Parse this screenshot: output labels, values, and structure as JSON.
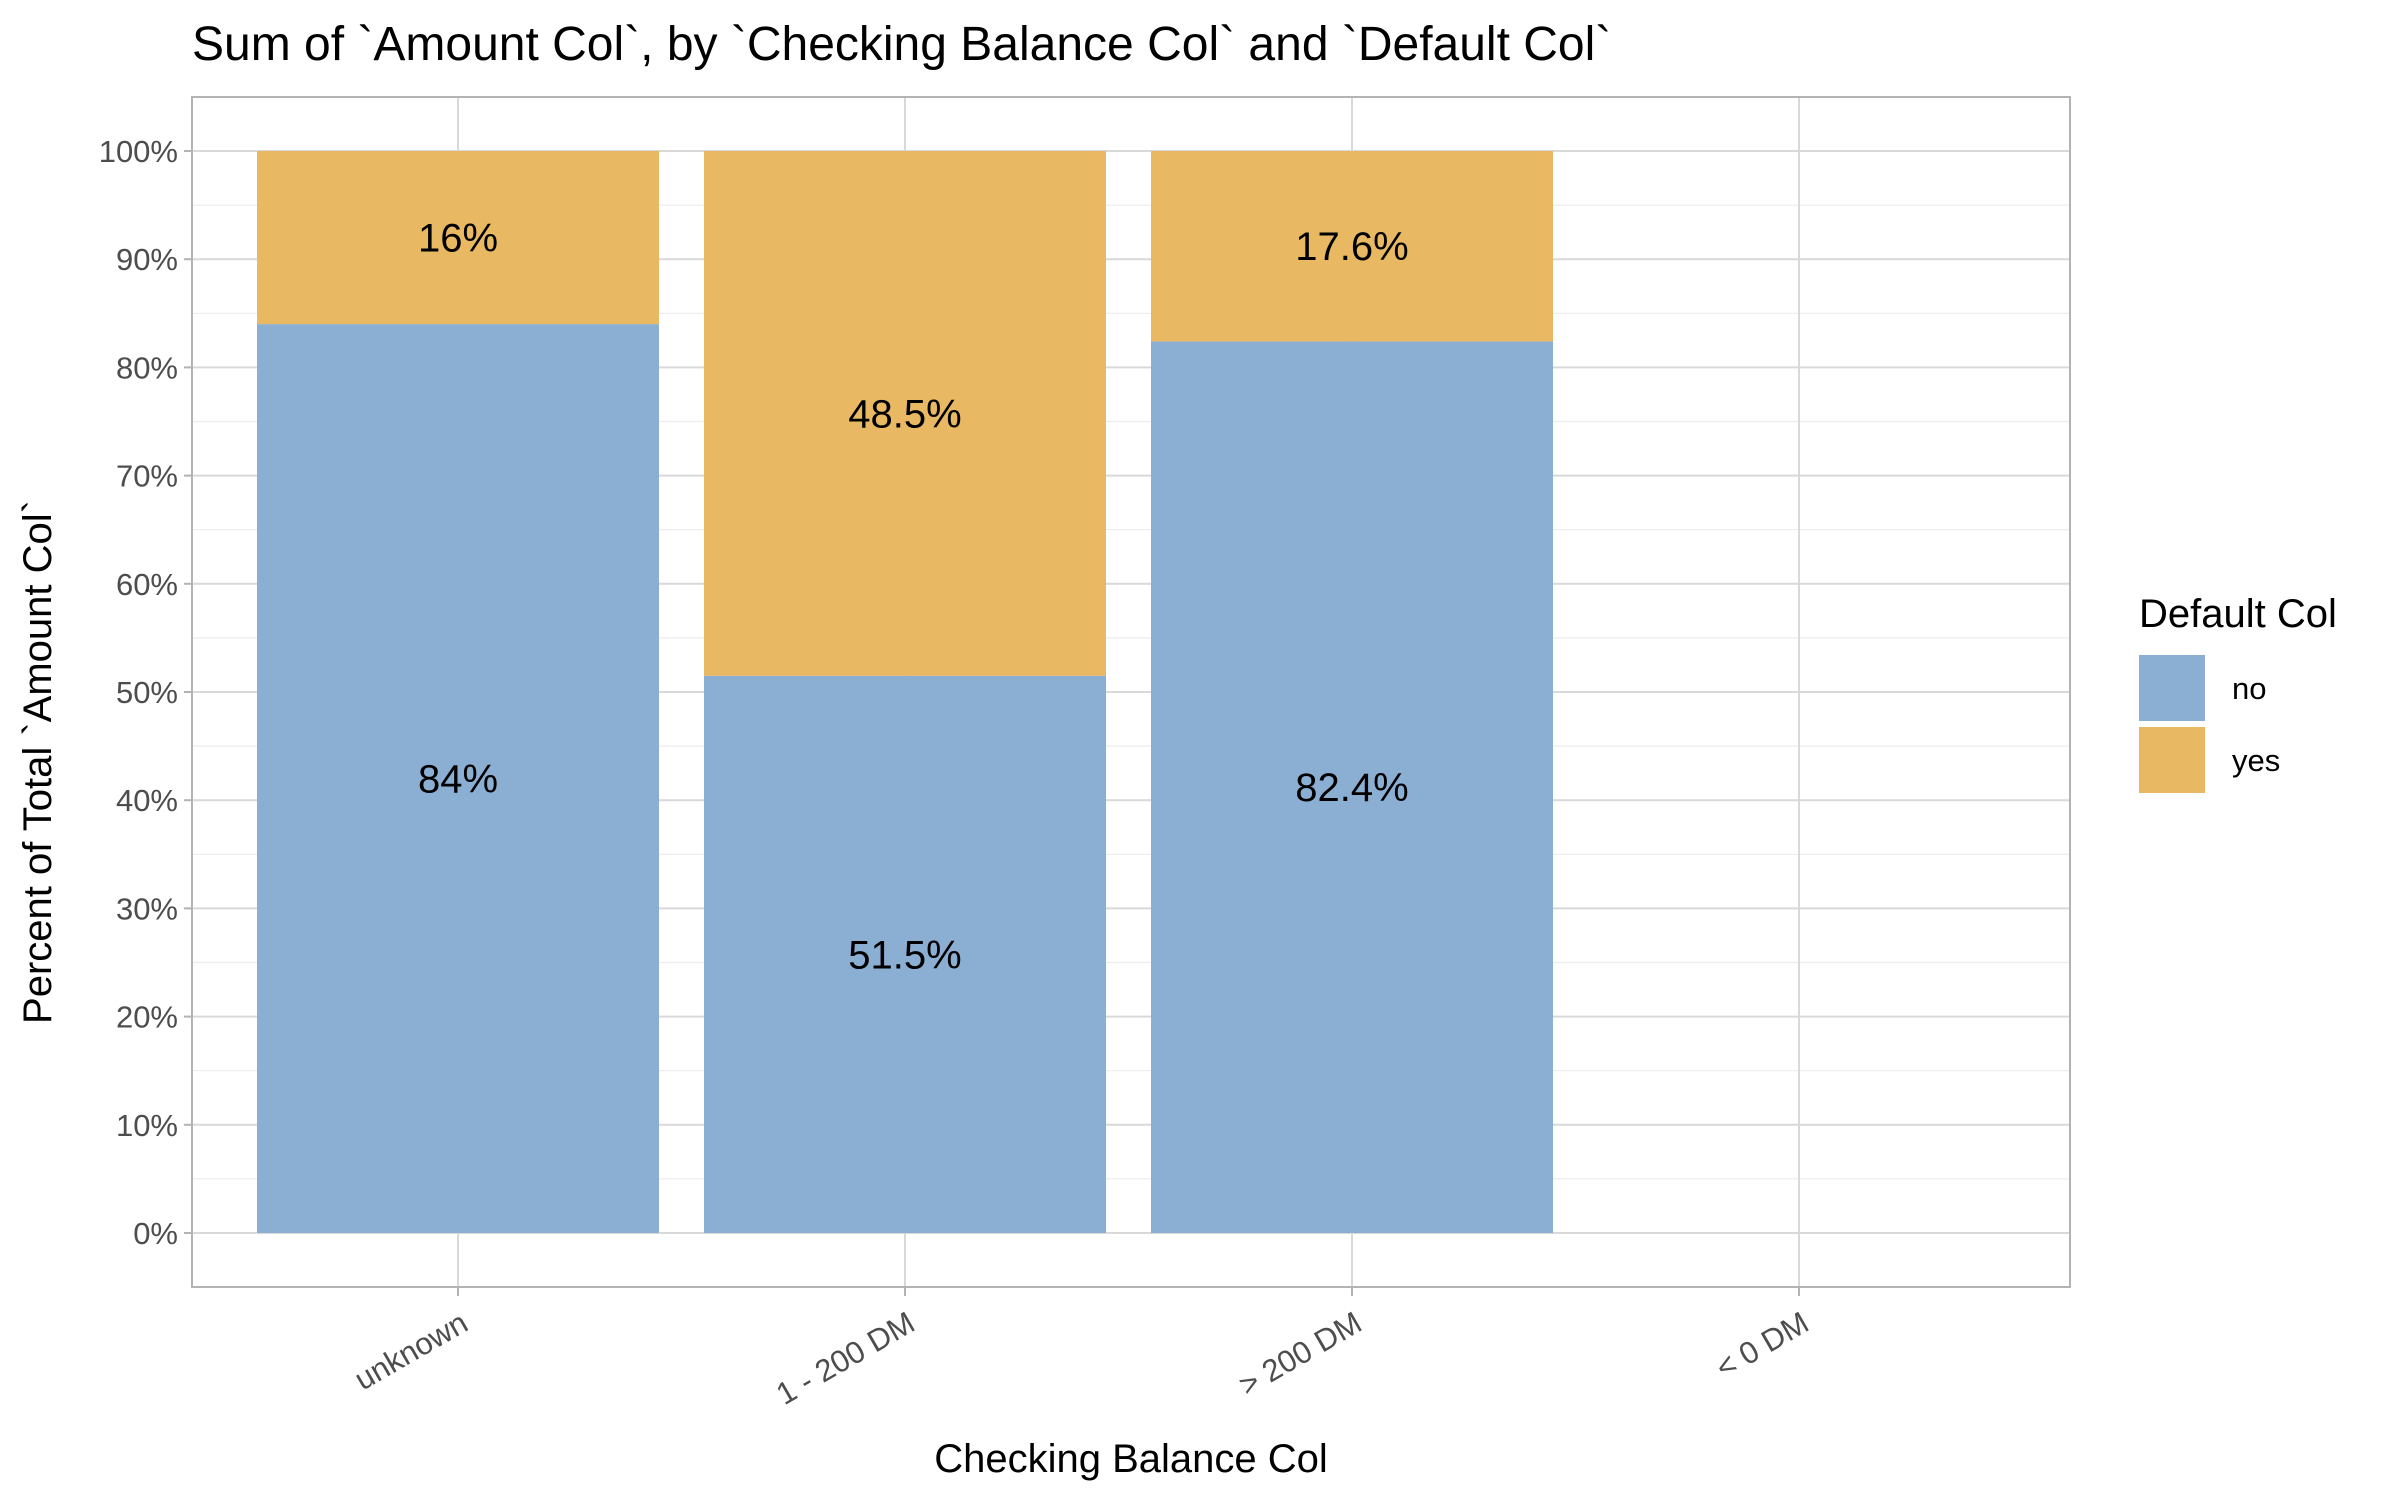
{
  "chart_data": {
    "type": "bar",
    "stacked": true,
    "title": "Sum of `Amount Col`, by `Checking Balance Col` and `Default Col`",
    "xlabel": "Checking Balance Col",
    "ylabel": "Percent of Total `Amount Col`",
    "categories": [
      "unknown",
      "1 - 200 DM",
      "> 200 DM",
      "< 0 DM"
    ],
    "series": [
      {
        "name": "no",
        "values": [
          84,
          51.5,
          82.4,
          null
        ],
        "labels": [
          "84%",
          "51.5%",
          "82.4%",
          ""
        ],
        "color": "#8BAED3"
      },
      {
        "name": "yes",
        "values": [
          16,
          48.5,
          17.6,
          null
        ],
        "labels": [
          "16%",
          "48.5%",
          "17.6%",
          ""
        ],
        "color": "#E8B862"
      }
    ],
    "ylim": [
      0,
      100
    ],
    "yticks": [
      "0%",
      "10%",
      "20%",
      "30%",
      "40%",
      "50%",
      "60%",
      "70%",
      "80%",
      "90%",
      "100%"
    ],
    "grid": true,
    "legend": {
      "title": "Default Col",
      "position": "right"
    },
    "colors": {
      "panel_border": "#b3b3b3",
      "grid_major": "#d9d9d9",
      "grid_minor": "#ececec",
      "tick_text": "#4d4d4d"
    }
  }
}
